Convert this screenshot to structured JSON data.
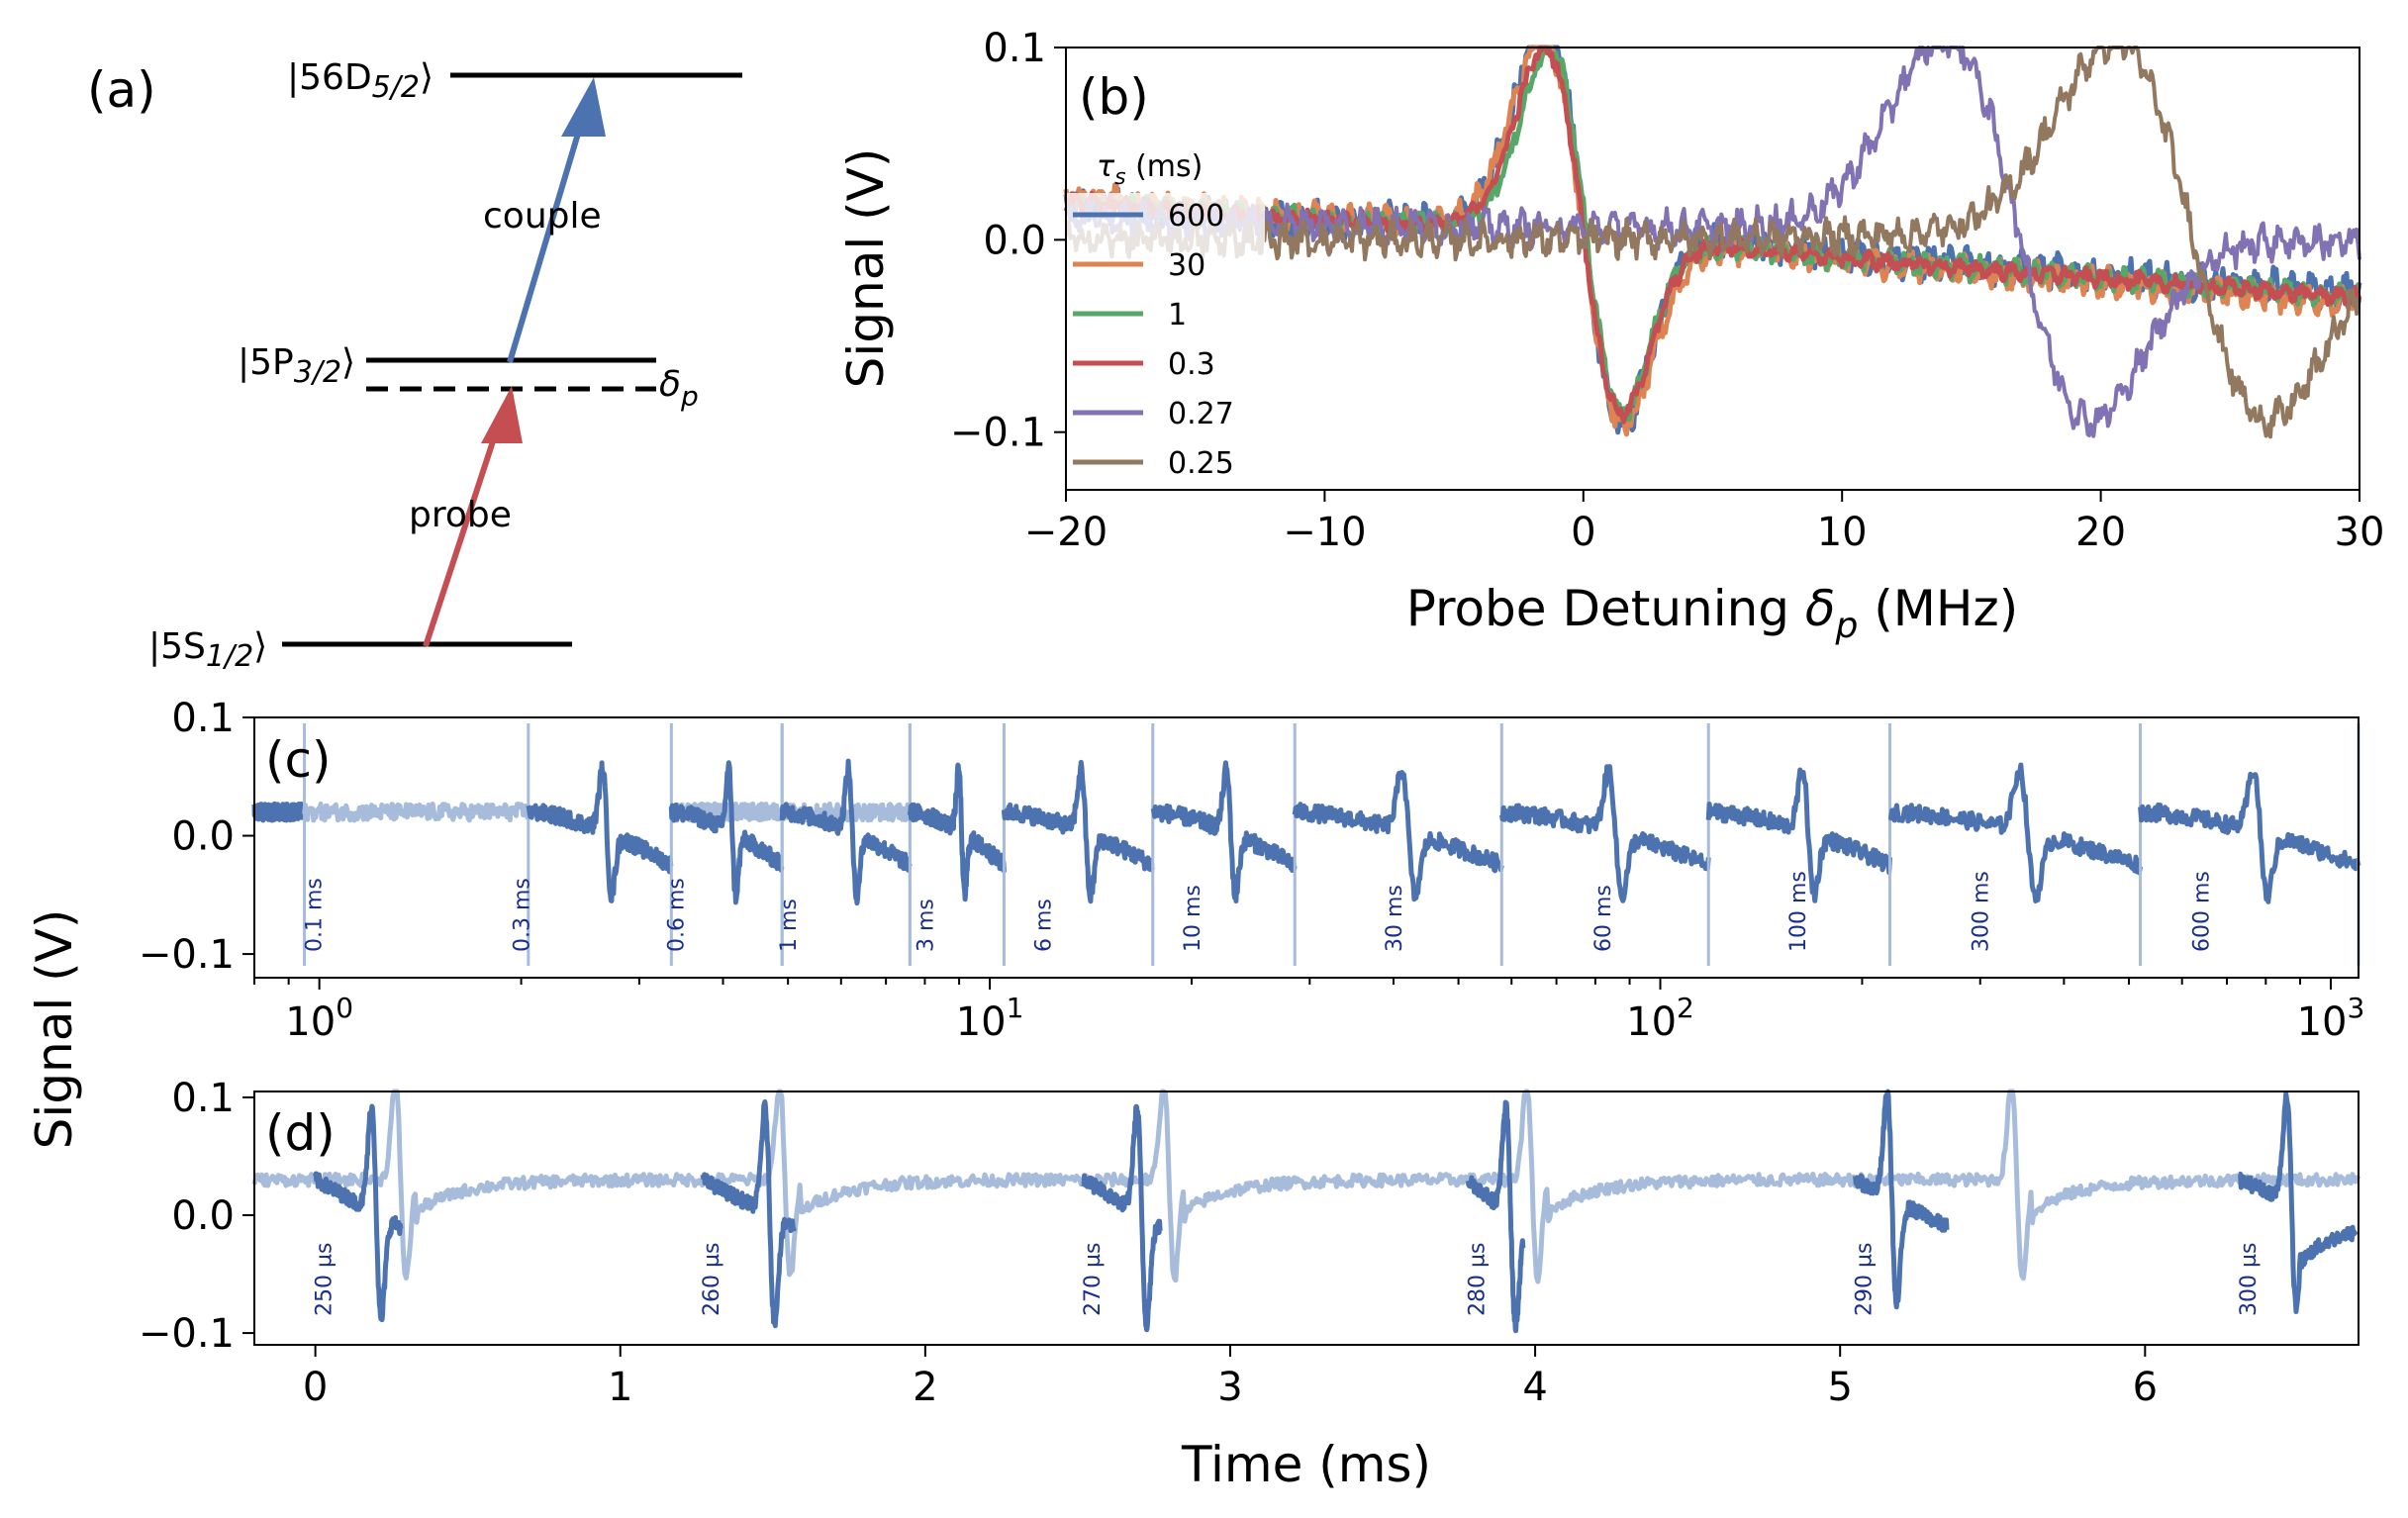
{
  "colors": {
    "blue": "#4c72b0",
    "orange": "#dd8452",
    "green": "#55a868",
    "red": "#c44e52",
    "purple": "#8172b3",
    "brown": "#937860",
    "light_blue": "#a7bbdb",
    "label_blue": "#1a2f8a"
  },
  "panel_a": {
    "label": "(a)",
    "levels": [
      {
        "name": "|56D",
        "sub": "5/2",
        "end": "⟩"
      },
      {
        "name": "|5P",
        "sub": "3/2",
        "end": "⟩"
      },
      {
        "name": "|5S",
        "sub": "1/2",
        "end": "⟩"
      }
    ],
    "detuning_symbol": "δ",
    "detuning_sub": "p",
    "couple_label": "couple",
    "probe_label": "probe"
  },
  "chart_data": [
    {
      "id": "b",
      "panel_label": "(b)",
      "type": "line",
      "xlabel": "Probe Detuning δp (MHz)",
      "xlabel_main": "Probe Detuning ",
      "xlabel_sym": "δ",
      "xlabel_sub": "p",
      "xlabel_unit": " (MHz)",
      "ylabel": "Signal (V)",
      "xlim": [
        -20,
        30
      ],
      "ylim": [
        -0.13,
        0.1
      ],
      "xticks": [
        -20,
        -10,
        0,
        10,
        20,
        30
      ],
      "xtick_labels": [
        "−20",
        "−10",
        "0",
        "10",
        "20",
        "30"
      ],
      "yticks": [
        -0.1,
        0.0,
        0.1
      ],
      "ytick_labels": [
        "−0.1",
        "0.0",
        "0.1"
      ],
      "legend_title_sym": "τ",
      "legend_title_sub": "s",
      "legend_title_unit": " (ms)",
      "series": [
        {
          "name": "600",
          "color": "#4c72b0",
          "center": 0,
          "amp": 0.105,
          "width": 2.1,
          "offset": 0.01,
          "slope": 0.0009,
          "noise": 0.006
        },
        {
          "name": "30",
          "color": "#dd8452",
          "center": 0,
          "amp": 0.1,
          "width": 2.2,
          "offset": 0.005,
          "slope": 0.0011,
          "noise": 0.005
        },
        {
          "name": "1",
          "color": "#55a868",
          "center": 0.1,
          "amp": 0.095,
          "width": 2.0,
          "offset": 0.005,
          "slope": 0.001,
          "noise": 0.004
        },
        {
          "name": "0.3",
          "color": "#c44e52",
          "center": 0,
          "amp": 0.095,
          "width": 2.1,
          "offset": 0.005,
          "slope": 0.001,
          "noise": 0.003
        },
        {
          "name": "0.27",
          "color": "#8172b3",
          "center": 16.8,
          "amp": 0.1,
          "width": 4.0,
          "offset": 0.006,
          "slope": 0.0003,
          "noise": 0.006
        },
        {
          "name": "0.25",
          "color": "#937860",
          "center": 23.5,
          "amp": 0.1,
          "width": 4.2,
          "offset": 0.005,
          "slope": 0.0,
          "noise": 0.006
        }
      ]
    },
    {
      "id": "c",
      "panel_label": "(c)",
      "type": "line",
      "xscale": "log",
      "xlim": [
        0.8,
        1100
      ],
      "ylim": [
        -0.12,
        0.1
      ],
      "xticks_major": [
        1,
        10,
        100,
        1000
      ],
      "xtick_labels": [
        {
          "base": "10",
          "exp": "0"
        },
        {
          "base": "10",
          "exp": "1"
        },
        {
          "base": "10",
          "exp": "2"
        },
        {
          "base": "10",
          "exp": "3"
        }
      ],
      "yticks": [
        -0.1,
        0.0,
        0.1
      ],
      "ytick_labels": [
        "−0.1",
        "0.0",
        "0.1"
      ],
      "segment_labels": [
        "0.1 ms",
        "0.3 ms",
        "0.6 ms",
        "1 ms",
        "3 ms",
        "6 ms",
        "10 ms",
        "30 ms",
        "60 ms",
        "100 ms",
        "300 ms",
        "600 ms"
      ],
      "segment_label_x": [
        0.98,
        2.0,
        3.4,
        5.0,
        8.0,
        12.0,
        20.0,
        40.0,
        82.0,
        160.0,
        300.0,
        640.0
      ]
    },
    {
      "id": "d",
      "panel_label": "(d)",
      "type": "line",
      "xlabel": "Time (ms)",
      "xlim": [
        -0.2,
        6.7
      ],
      "ylim": [
        -0.11,
        0.105
      ],
      "xticks": [
        0,
        1,
        2,
        3,
        4,
        5,
        6
      ],
      "xtick_labels": [
        "0",
        "1",
        "2",
        "3",
        "4",
        "5",
        "6"
      ],
      "yticks": [
        -0.1,
        0.0,
        0.1
      ],
      "ytick_labels": [
        "−0.1",
        "0.0",
        "0.1"
      ],
      "segment_labels": [
        "250 µs",
        "260 µs",
        "270 µs",
        "280 µs",
        "290 µs",
        "300 µs"
      ],
      "segment_starts": [
        0.0,
        1.27,
        2.52,
        3.78,
        5.05,
        6.31
      ]
    }
  ],
  "shared_ylabel": "Signal (V)"
}
